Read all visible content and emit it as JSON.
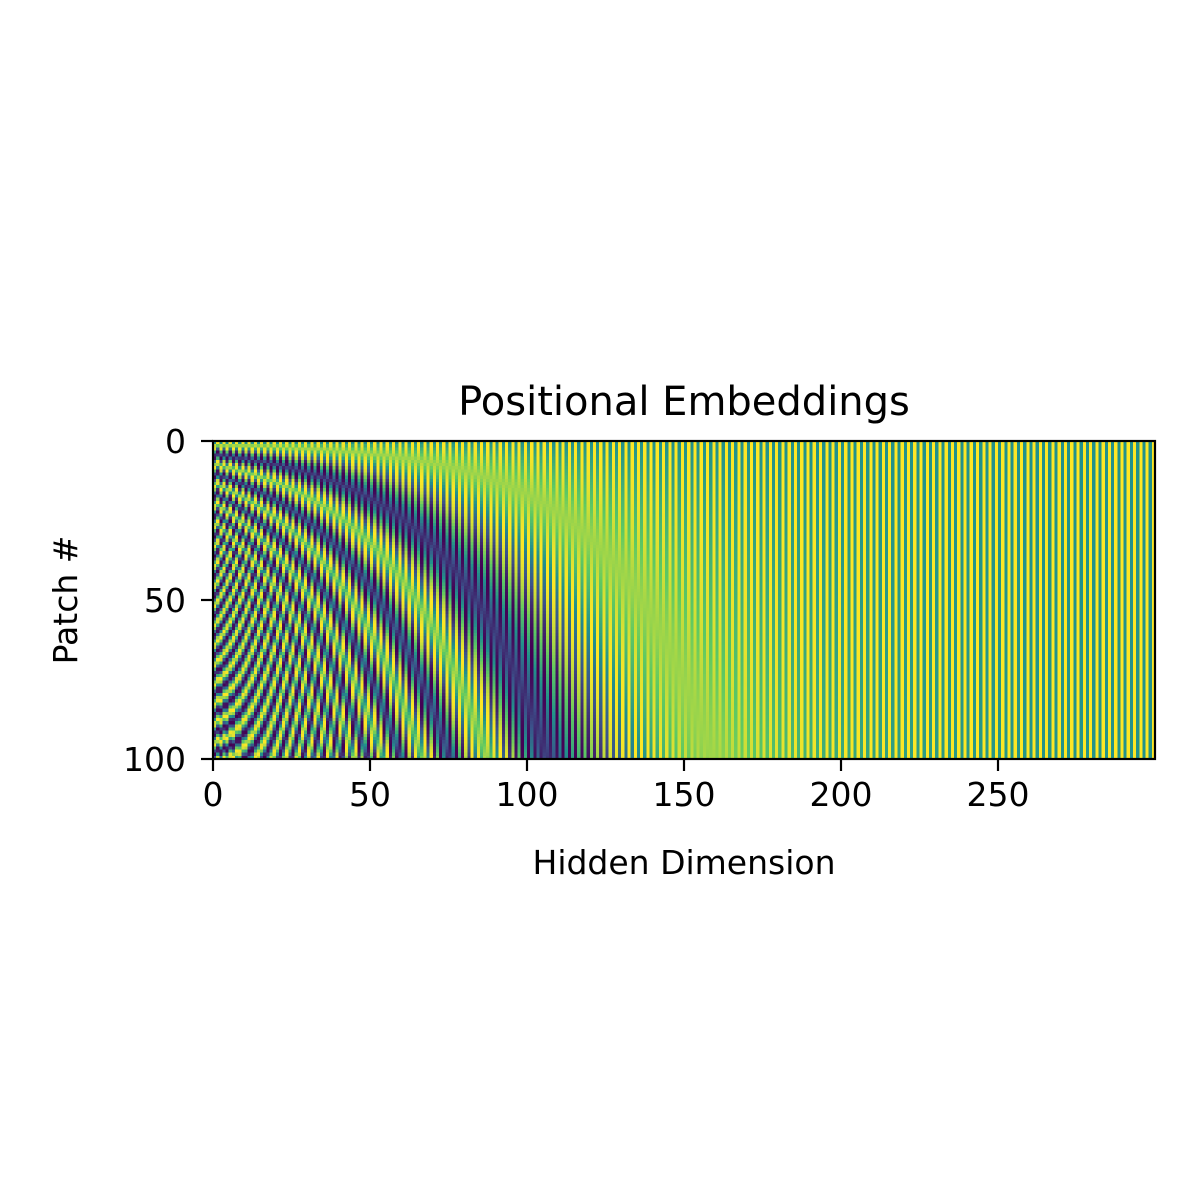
{
  "chart_data": {
    "type": "heatmap",
    "title": "Positional Embeddings",
    "xlabel": "Hidden Dimension",
    "ylabel": "Patch #",
    "x_range": [
      0,
      300
    ],
    "y_range": [
      0,
      101
    ],
    "y_inverted": true,
    "xticks": [
      0,
      50,
      100,
      150,
      200,
      250
    ],
    "xtick_labels": [
      "0",
      "50",
      "100",
      "150",
      "200",
      "250"
    ],
    "yticks": [
      0,
      50,
      100
    ],
    "ytick_labels": [
      "0",
      "50",
      "100"
    ],
    "colormap": "viridis",
    "value_range": [
      -1,
      1
    ],
    "num_rows": 101,
    "num_columns": 300,
    "encoding": "sinusoidal",
    "grid": false,
    "colormap_stops": [
      "#440154",
      "#3b528b",
      "#21918c",
      "#5ec962",
      "#fde725"
    ]
  }
}
